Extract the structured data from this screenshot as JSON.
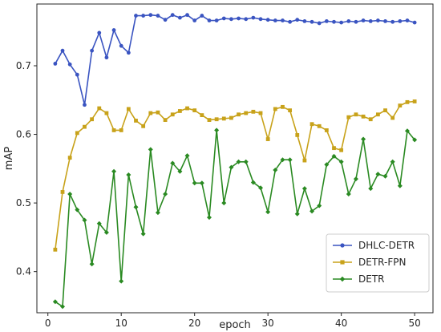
{
  "chart_data": {
    "type": "line",
    "xlabel": "epoch",
    "ylabel": "mAP",
    "xlim": [
      -1.5,
      52.5
    ],
    "ylim": [
      0.34,
      0.79
    ],
    "xticks": [
      0,
      10,
      20,
      30,
      40,
      50
    ],
    "yticks": [
      0.4,
      0.5,
      0.6,
      0.7
    ],
    "grid": false,
    "legend_position": "bottom-right",
    "x": [
      1,
      2,
      3,
      4,
      5,
      6,
      7,
      8,
      9,
      10,
      11,
      12,
      13,
      14,
      15,
      16,
      17,
      18,
      19,
      20,
      21,
      22,
      23,
      24,
      25,
      26,
      27,
      28,
      29,
      30,
      31,
      32,
      33,
      34,
      35,
      36,
      37,
      38,
      39,
      40,
      41,
      42,
      43,
      44,
      45,
      46,
      47,
      48,
      49,
      50
    ],
    "series": [
      {
        "name": "DHLC-DETR",
        "color": "#3a54c1",
        "marker": "circle",
        "values": [
          0.703,
          0.722,
          0.702,
          0.687,
          0.643,
          0.722,
          0.748,
          0.712,
          0.752,
          0.729,
          0.719,
          0.773,
          0.773,
          0.774,
          0.773,
          0.767,
          0.774,
          0.77,
          0.774,
          0.766,
          0.773,
          0.766,
          0.766,
          0.769,
          0.768,
          0.769,
          0.768,
          0.77,
          0.768,
          0.767,
          0.766,
          0.766,
          0.764,
          0.767,
          0.765,
          0.764,
          0.762,
          0.765,
          0.764,
          0.763,
          0.765,
          0.764,
          0.766,
          0.765,
          0.766,
          0.765,
          0.764,
          0.765,
          0.766,
          0.763
        ]
      },
      {
        "name": "DETR-FPN",
        "color": "#c8a21a",
        "marker": "square",
        "values": [
          0.432,
          0.516,
          0.566,
          0.602,
          0.611,
          0.622,
          0.638,
          0.631,
          0.606,
          0.606,
          0.637,
          0.62,
          0.612,
          0.631,
          0.632,
          0.621,
          0.629,
          0.634,
          0.638,
          0.635,
          0.628,
          0.621,
          0.622,
          0.623,
          0.624,
          0.629,
          0.631,
          0.633,
          0.631,
          0.593,
          0.637,
          0.64,
          0.635,
          0.599,
          0.562,
          0.615,
          0.612,
          0.606,
          0.58,
          0.577,
          0.625,
          0.629,
          0.626,
          0.622,
          0.629,
          0.635,
          0.624,
          0.642,
          0.647,
          0.648
        ]
      },
      {
        "name": "DETR",
        "color": "#2a8a22",
        "marker": "diamond",
        "values": [
          0.356,
          0.349,
          0.513,
          0.49,
          0.475,
          0.411,
          0.47,
          0.457,
          0.546,
          0.386,
          0.541,
          0.494,
          0.455,
          0.578,
          0.486,
          0.513,
          0.558,
          0.546,
          0.569,
          0.529,
          0.529,
          0.479,
          0.606,
          0.5,
          0.552,
          0.56,
          0.56,
          0.53,
          0.522,
          0.487,
          0.548,
          0.563,
          0.563,
          0.484,
          0.521,
          0.488,
          0.496,
          0.556,
          0.568,
          0.56,
          0.513,
          0.535,
          0.593,
          0.521,
          0.542,
          0.539,
          0.56,
          0.525,
          0.605,
          0.592
        ]
      }
    ]
  }
}
